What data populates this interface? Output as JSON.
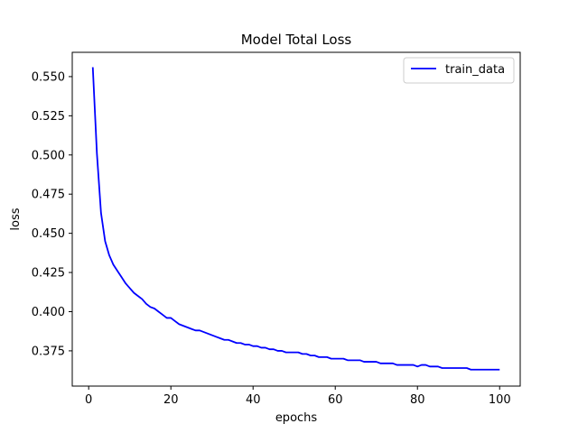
{
  "chart_data": {
    "type": "line",
    "title": "Model Total Loss",
    "xlabel": "epochs",
    "ylabel": "loss",
    "xlim": [
      -4,
      105
    ],
    "ylim": [
      0.3525,
      0.5655
    ],
    "xticks": [
      0,
      20,
      40,
      60,
      80,
      100
    ],
    "yticks": [
      0.375,
      0.4,
      0.425,
      0.45,
      0.475,
      0.5,
      0.525,
      0.55
    ],
    "ytick_labels": [
      "0.375",
      "0.400",
      "0.425",
      "0.450",
      "0.475",
      "0.500",
      "0.525",
      "0.550"
    ],
    "grid": false,
    "legend_position": "top-right",
    "series": [
      {
        "name": "train_data",
        "color": "#0000ff",
        "x": [
          1,
          2,
          3,
          4,
          5,
          6,
          7,
          8,
          9,
          10,
          11,
          12,
          13,
          14,
          15,
          16,
          17,
          18,
          19,
          20,
          21,
          22,
          23,
          24,
          25,
          26,
          27,
          28,
          29,
          30,
          31,
          32,
          33,
          34,
          35,
          36,
          37,
          38,
          39,
          40,
          41,
          42,
          43,
          44,
          45,
          46,
          47,
          48,
          49,
          50,
          51,
          52,
          53,
          54,
          55,
          56,
          57,
          58,
          59,
          60,
          61,
          62,
          63,
          64,
          65,
          66,
          67,
          68,
          69,
          70,
          71,
          72,
          73,
          74,
          75,
          76,
          77,
          78,
          79,
          80,
          81,
          82,
          83,
          84,
          85,
          86,
          87,
          88,
          89,
          90,
          91,
          92,
          93,
          94,
          95,
          96,
          97,
          98,
          99,
          100
        ],
        "y": [
          0.556,
          0.501,
          0.463,
          0.445,
          0.436,
          0.43,
          0.426,
          0.422,
          0.418,
          0.415,
          0.412,
          0.41,
          0.408,
          0.405,
          0.403,
          0.402,
          0.4,
          0.398,
          0.396,
          0.396,
          0.394,
          0.392,
          0.391,
          0.39,
          0.389,
          0.388,
          0.388,
          0.387,
          0.386,
          0.385,
          0.384,
          0.383,
          0.382,
          0.382,
          0.381,
          0.38,
          0.38,
          0.379,
          0.379,
          0.378,
          0.378,
          0.377,
          0.377,
          0.376,
          0.376,
          0.375,
          0.375,
          0.374,
          0.374,
          0.374,
          0.374,
          0.373,
          0.373,
          0.372,
          0.372,
          0.371,
          0.371,
          0.371,
          0.37,
          0.37,
          0.37,
          0.37,
          0.369,
          0.369,
          0.369,
          0.369,
          0.368,
          0.368,
          0.368,
          0.368,
          0.367,
          0.367,
          0.367,
          0.367,
          0.366,
          0.366,
          0.366,
          0.366,
          0.366,
          0.365,
          0.366,
          0.366,
          0.365,
          0.365,
          0.365,
          0.364,
          0.364,
          0.364,
          0.364,
          0.364,
          0.364,
          0.364,
          0.363,
          0.363,
          0.363,
          0.363,
          0.363,
          0.363,
          0.363,
          0.363
        ]
      }
    ]
  }
}
